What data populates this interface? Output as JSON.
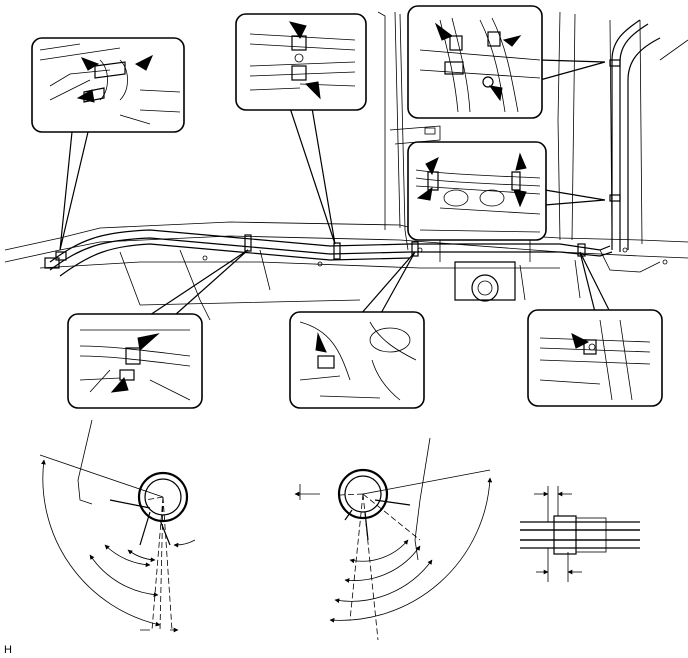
{
  "illustration": {
    "reference_label": "H",
    "ink_color": "#000000",
    "paper_color": "#ffffff"
  },
  "callouts": [
    {
      "name": "callout-rear-left-clamps"
    },
    {
      "name": "callout-upper-mid-clamps"
    },
    {
      "name": "callout-upper-right-clamps"
    },
    {
      "name": "callout-right-mid-clamps"
    },
    {
      "name": "callout-lower-left-clamp"
    },
    {
      "name": "callout-lower-mid-clamp"
    },
    {
      "name": "callout-lower-right-clamp"
    }
  ],
  "detail_views": [
    {
      "name": "clamp-angle-detail-left"
    },
    {
      "name": "clamp-angle-detail-center"
    },
    {
      "name": "pipe-joint-detail-right"
    }
  ]
}
